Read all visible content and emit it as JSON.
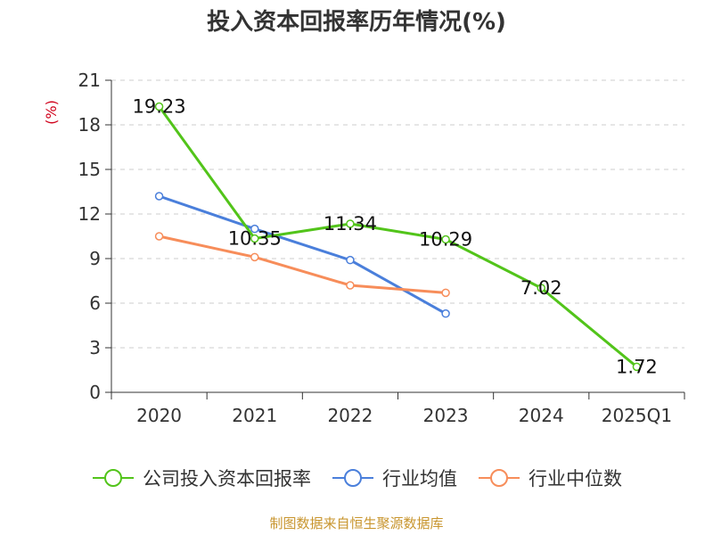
{
  "chart_data": {
    "type": "line",
    "title": "投入资本回报率历年情况(%)",
    "ylabel": "(%)",
    "categories": [
      "2020",
      "2021",
      "2022",
      "2023",
      "2024",
      "2025Q1"
    ],
    "yticks": [
      "0",
      "3",
      "6",
      "9",
      "12",
      "15",
      "18",
      "21"
    ],
    "ylim": [
      0,
      21
    ],
    "grid": true,
    "legend_position": "bottom",
    "series": [
      {
        "name": "公司投入资本回报率",
        "color": "#52c41a",
        "values": [
          19.23,
          10.35,
          11.34,
          10.29,
          7.02,
          1.72
        ],
        "labels": [
          "19.23",
          "10.35",
          "11.34",
          "10.29",
          "7.02",
          "1.72"
        ]
      },
      {
        "name": "行业均值",
        "color": "#4a7fdb",
        "values": [
          13.2,
          11.0,
          8.9,
          5.3,
          null,
          null
        ]
      },
      {
        "name": "行业中位数",
        "color": "#f78d5a",
        "values": [
          10.5,
          9.1,
          7.2,
          6.7,
          null,
          null
        ]
      }
    ]
  },
  "source": "制图数据来自恒生聚源数据库"
}
